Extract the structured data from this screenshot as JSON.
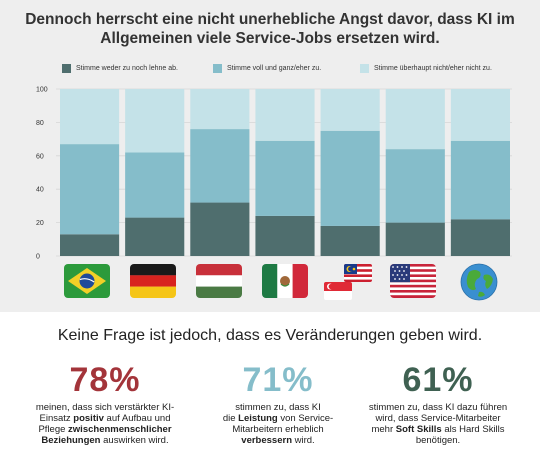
{
  "title_line1": "Dennoch herrscht eine nicht unerhebliche Angst davor, dass KI im",
  "title_line2": "Allgemeinen viele Service-Jobs ersetzen wird.",
  "chart_data": {
    "type": "bar",
    "stacked": true,
    "categories": [
      "Brasilien",
      "Deutschland",
      "Ungarn",
      "Mexiko",
      "Malaysia / Singapur",
      "USA",
      "Welt"
    ],
    "series": [
      {
        "name": "Stimme weder zu noch lehne ab.",
        "color": "#4f6e6e",
        "values": [
          13,
          23,
          32,
          24,
          18,
          20,
          22
        ]
      },
      {
        "name": "Stimme voll und ganz/eher zu.",
        "color": "#85bdca",
        "values": [
          54,
          39,
          44,
          45,
          57,
          44,
          47
        ]
      },
      {
        "name": "Stimme überhaupt nicht/eher nicht zu.",
        "color": "#c4e2e8",
        "values": [
          33,
          38,
          24,
          31,
          25,
          36,
          31
        ]
      }
    ],
    "ylim": [
      0,
      100
    ],
    "yticks": [
      "0",
      "20",
      "40",
      "60",
      "80",
      "100"
    ],
    "grid": true,
    "legend_position": "top"
  },
  "flags": [
    "brazil-flag-icon",
    "germany-flag-icon",
    "hungary-flag-icon",
    "mexico-flag-icon",
    "malaysia-singapore-flag-icon",
    "usa-flag-icon",
    "globe-icon"
  ],
  "subtitle": "Keine Frage ist jedoch, dass es Veränderungen geben wird.",
  "stats": [
    {
      "value": "78%",
      "color": "#a3343a",
      "parts": [
        {
          "t": "meinen, dass sich verstärkter KI-",
          "b": false,
          "br": true
        },
        {
          "t": "Einsatz ",
          "b": false
        },
        {
          "t": "positiv",
          "b": true
        },
        {
          "t": " auf Aufbau und",
          "b": false,
          "br": true
        },
        {
          "t": "Pflege ",
          "b": false
        },
        {
          "t": "zwischenmenschlicher",
          "b": true,
          "br": true
        },
        {
          "t": "Beziehungen",
          "b": true
        },
        {
          "t": " auswirken wird.",
          "b": false
        }
      ]
    },
    {
      "value": "71%",
      "color": "#85bdca",
      "parts": [
        {
          "t": "stimmen zu, dass KI",
          "b": false,
          "br": true
        },
        {
          "t": "die ",
          "b": false
        },
        {
          "t": "Leistung",
          "b": true
        },
        {
          "t": " von Service-",
          "b": false,
          "br": true
        },
        {
          "t": "Mitarbeitern erheblich",
          "b": false,
          "br": true
        },
        {
          "t": "verbessern",
          "b": true
        },
        {
          "t": " wird.",
          "b": false
        }
      ]
    },
    {
      "value": "61%",
      "color": "#3f6152",
      "parts": [
        {
          "t": "stimmen zu, dass KI dazu führen",
          "b": false,
          "br": true
        },
        {
          "t": "wird, dass Service-Mitarbeiter",
          "b": false,
          "br": true
        },
        {
          "t": "mehr ",
          "b": false
        },
        {
          "t": "Soft Skills",
          "b": true
        },
        {
          "t": " als Hard Skills",
          "b": false,
          "br": true
        },
        {
          "t": "benötigen.",
          "b": false
        }
      ]
    }
  ]
}
